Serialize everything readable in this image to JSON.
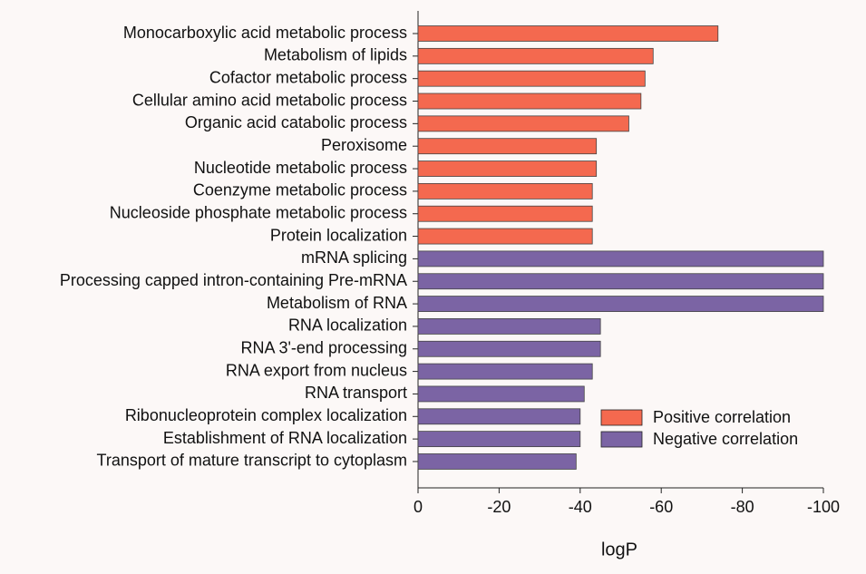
{
  "chart_data": {
    "type": "bar",
    "orientation": "horizontal",
    "x_label": "logP",
    "categories": [
      "Monocarboxylic acid metabolic process",
      "Metabolism of lipids",
      "Cofactor metabolic process",
      "Cellular amino acid metabolic process",
      "Organic acid catabolic process",
      "Peroxisome",
      "Nucleotide metabolic process",
      "Coenzyme metabolic process",
      "Nucleoside phosphate metabolic process",
      "Protein localization",
      "mRNA splicing",
      "Processing capped intron-containing Pre-mRNA",
      "Metabolism of RNA",
      "RNA localization",
      "RNA 3'-end processing",
      "RNA export from nucleus",
      "RNA transport",
      "Ribonucleoprotein complex localization",
      "Establishment of RNA localization",
      "Transport of mature transcript to cytoplasm"
    ],
    "series": [
      {
        "name": "Positive correlation",
        "color": "#f4694f",
        "values": [
          -74,
          -58,
          -56,
          -55,
          -52,
          -44,
          -44,
          -43,
          -43,
          -43,
          null,
          null,
          null,
          null,
          null,
          null,
          null,
          null,
          null,
          null
        ]
      },
      {
        "name": "Negative correlation",
        "color": "#7b64a4",
        "values": [
          null,
          null,
          null,
          null,
          null,
          null,
          null,
          null,
          null,
          null,
          -100,
          -100,
          -100,
          -45,
          -45,
          -43,
          -41,
          -40,
          -40,
          -39
        ]
      }
    ],
    "xlim": [
      0,
      -100
    ],
    "xticks": [
      0,
      -20,
      -40,
      -60,
      -80,
      -100
    ]
  }
}
